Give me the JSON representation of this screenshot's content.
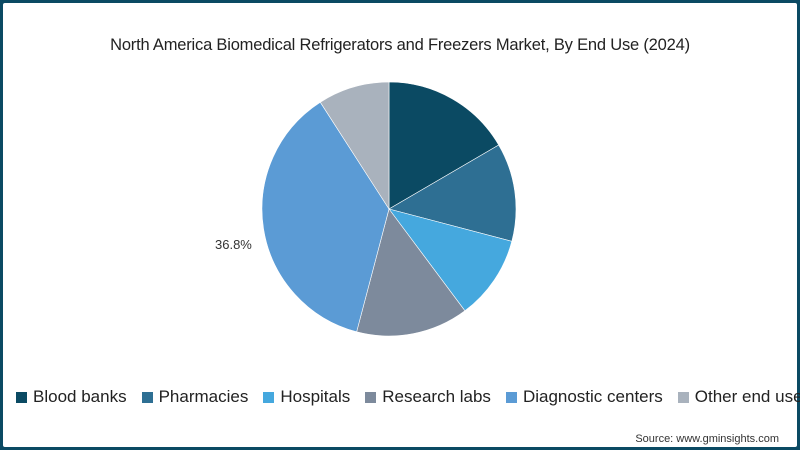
{
  "chart_data": {
    "type": "pie",
    "title": "North America Biomedical Refrigerators and Freezers Market, By End Use (2024)",
    "categories": [
      "Blood banks",
      "Pharmacies",
      "Hospitals",
      "Research labs",
      "Diagnostic centers",
      "Other end users"
    ],
    "values": [
      16.6,
      12.5,
      10.7,
      14.3,
      36.8,
      9.1
    ],
    "colors": [
      "#0b4a63",
      "#2e6f93",
      "#45a8de",
      "#7d8a9c",
      "#5b9bd5",
      "#a9b2bd"
    ],
    "unit": "%",
    "data_labels": [
      {
        "category": "Diagnostic centers",
        "text": "36.8%"
      }
    ],
    "start_angle_deg": 0,
    "direction": "clockwise",
    "legend_position": "bottom"
  },
  "title": "North America Biomedical Refrigerators and Freezers Market, By End Use (2024)",
  "data_label": "36.8%",
  "legend": [
    {
      "label": "Blood banks",
      "color": "#0b4a63"
    },
    {
      "label": "Pharmacies",
      "color": "#2e6f93"
    },
    {
      "label": "Hospitals",
      "color": "#45a8de"
    },
    {
      "label": "Research labs",
      "color": "#7d8a9c"
    },
    {
      "label": "Diagnostic centers",
      "color": "#5b9bd5"
    },
    {
      "label": "Other end users",
      "color": "#a9b2bd"
    }
  ],
  "source": "Source: www.gminsights.com"
}
